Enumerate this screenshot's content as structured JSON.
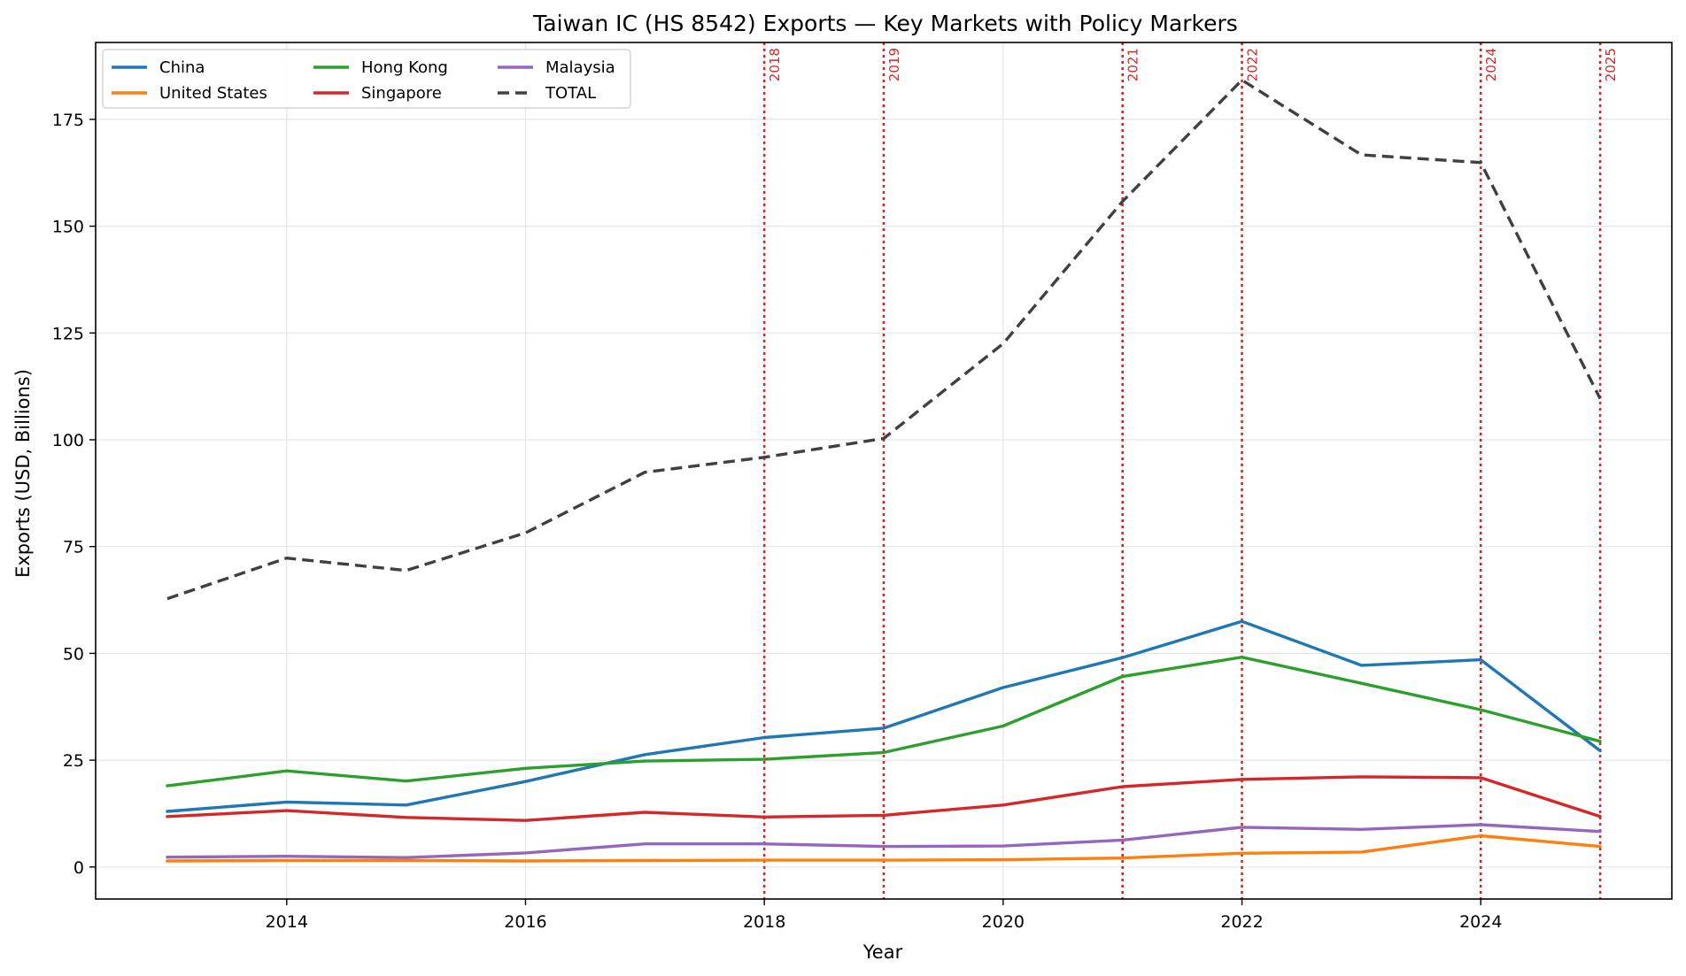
{
  "chart_data": {
    "type": "line",
    "title": "Taiwan IC (HS 8542) Exports — Key Markets with Policy Markers",
    "xlabel": "Year",
    "ylabel": "Exports (USD, Billions)",
    "xlim": [
      2012.4,
      2025.6
    ],
    "ylim": [
      -7.5,
      193
    ],
    "xticks": [
      2014,
      2016,
      2018,
      2020,
      2022,
      2024
    ],
    "yticks": [
      0,
      25,
      50,
      75,
      100,
      125,
      150,
      175
    ],
    "grid": true,
    "legend": {
      "position": "top-left",
      "columns": 3
    },
    "x": [
      2013,
      2014,
      2015,
      2016,
      2017,
      2018,
      2019,
      2020,
      2021,
      2022,
      2023,
      2024,
      2025
    ],
    "series": [
      {
        "name": "China",
        "color": "#1f77b4",
        "style": "solid",
        "values": [
          13.0,
          15.2,
          14.5,
          20.0,
          26.3,
          30.3,
          32.5,
          42.0,
          49.0,
          57.5,
          47.2,
          48.5,
          27.2
        ]
      },
      {
        "name": "United States",
        "color": "#ff7f0e",
        "style": "solid",
        "values": [
          1.4,
          1.5,
          1.5,
          1.4,
          1.5,
          1.6,
          1.6,
          1.7,
          2.1,
          3.2,
          3.5,
          7.3,
          4.8
        ]
      },
      {
        "name": "Hong Kong",
        "color": "#2ca02c",
        "style": "solid",
        "values": [
          19.0,
          22.5,
          20.1,
          23.1,
          24.8,
          25.2,
          26.8,
          33.0,
          44.6,
          49.1,
          43.0,
          36.8,
          29.4
        ]
      },
      {
        "name": "Singapore",
        "color": "#d62728",
        "style": "solid",
        "values": [
          11.8,
          13.2,
          11.6,
          10.9,
          12.8,
          11.7,
          12.1,
          14.5,
          18.8,
          20.5,
          21.1,
          20.9,
          11.8
        ]
      },
      {
        "name": "Malaysia",
        "color": "#9467bd",
        "style": "solid",
        "values": [
          2.3,
          2.5,
          2.2,
          3.3,
          5.4,
          5.4,
          4.8,
          4.9,
          6.3,
          9.3,
          8.8,
          9.9,
          8.3
        ]
      },
      {
        "name": "TOTAL",
        "color": "#404040",
        "style": "dashed",
        "values": [
          62.8,
          72.3,
          69.4,
          78.2,
          92.4,
          95.9,
          100.3,
          122.5,
          155.8,
          184.2,
          166.7,
          164.9,
          109.6
        ]
      }
    ],
    "policy_markers": [
      {
        "x": 2018,
        "label": "2018"
      },
      {
        "x": 2019,
        "label": "2019"
      },
      {
        "x": 2021,
        "label": "2021"
      },
      {
        "x": 2022,
        "label": "2022"
      },
      {
        "x": 2024,
        "label": "2024"
      },
      {
        "x": 2025,
        "label": "2025"
      }
    ],
    "marker_color": "#d62728"
  }
}
